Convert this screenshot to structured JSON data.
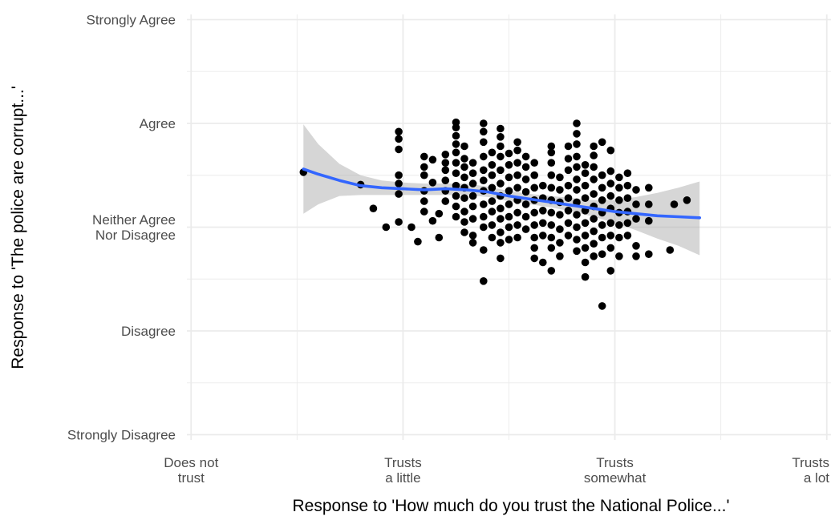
{
  "chart_data": {
    "type": "scatter",
    "title": "",
    "xlabel": "Response to 'How much do you trust the National Police...'",
    "ylabel": "Response to 'The police are corrupt...'",
    "xlim": [
      0.98,
      4.02
    ],
    "ylim": [
      0.95,
      5.05
    ],
    "x_ticks": [
      {
        "value": 1,
        "lines": [
          "Does not",
          "trust"
        ]
      },
      {
        "value": 2,
        "lines": [
          "Trusts",
          "a little"
        ]
      },
      {
        "value": 3,
        "lines": [
          "Trusts",
          "somewhat"
        ]
      },
      {
        "value": 4,
        "lines": [
          "Trusts",
          "a lot"
        ]
      }
    ],
    "y_ticks": [
      {
        "value": 1,
        "lines": [
          "Strongly Disagree"
        ]
      },
      {
        "value": 2,
        "lines": [
          "Disagree"
        ]
      },
      {
        "value": 3,
        "lines": [
          "Neither Agree",
          "Nor Disagree"
        ]
      },
      {
        "value": 4,
        "lines": [
          "Agree"
        ]
      },
      {
        "value": 5,
        "lines": [
          "Strongly Agree"
        ]
      }
    ],
    "grid": true,
    "legend": "none",
    "colors": {
      "points": "#000000",
      "smooth": "#3366FF",
      "ribbon": "#999999",
      "grid": "#ebebeb",
      "ticks": "#4d4d4d"
    },
    "points": [
      [
        1.53,
        3.53
      ],
      [
        1.8,
        3.41
      ],
      [
        1.86,
        3.18
      ],
      [
        1.92,
        3.0
      ],
      [
        1.98,
        3.5
      ],
      [
        1.98,
        3.32
      ],
      [
        1.98,
        3.05
      ],
      [
        1.98,
        3.42
      ],
      [
        1.98,
        3.75
      ],
      [
        1.98,
        3.85
      ],
      [
        1.98,
        3.92
      ],
      [
        2.04,
        3.0
      ],
      [
        2.07,
        2.86
      ],
      [
        2.1,
        3.15
      ],
      [
        2.1,
        3.25
      ],
      [
        2.1,
        3.35
      ],
      [
        2.1,
        3.5
      ],
      [
        2.1,
        3.58
      ],
      [
        2.1,
        3.68
      ],
      [
        2.14,
        3.43
      ],
      [
        2.14,
        3.65
      ],
      [
        2.14,
        3.06
      ],
      [
        2.17,
        2.9
      ],
      [
        2.17,
        3.13
      ],
      [
        2.2,
        3.25
      ],
      [
        2.2,
        3.35
      ],
      [
        2.2,
        3.45
      ],
      [
        2.2,
        3.55
      ],
      [
        2.2,
        3.62
      ],
      [
        2.2,
        3.7
      ],
      [
        2.25,
        3.1
      ],
      [
        2.25,
        3.2
      ],
      [
        2.25,
        3.3
      ],
      [
        2.25,
        3.4
      ],
      [
        2.25,
        3.52
      ],
      [
        2.25,
        3.62
      ],
      [
        2.25,
        3.72
      ],
      [
        2.25,
        3.8
      ],
      [
        2.25,
        3.88
      ],
      [
        2.25,
        3.96
      ],
      [
        2.25,
        4.01
      ],
      [
        2.29,
        2.95
      ],
      [
        2.29,
        3.05
      ],
      [
        2.29,
        3.15
      ],
      [
        2.29,
        3.28
      ],
      [
        2.29,
        3.38
      ],
      [
        2.29,
        3.48
      ],
      [
        2.29,
        3.58
      ],
      [
        2.29,
        3.66
      ],
      [
        2.29,
        3.78
      ],
      [
        2.33,
        2.92
      ],
      [
        2.33,
        2.85
      ],
      [
        2.33,
        3.08
      ],
      [
        2.33,
        3.2
      ],
      [
        2.33,
        3.3
      ],
      [
        2.33,
        3.42
      ],
      [
        2.33,
        3.52
      ],
      [
        2.33,
        3.62
      ],
      [
        2.38,
        2.48
      ],
      [
        2.38,
        2.78
      ],
      [
        2.38,
        3.0
      ],
      [
        2.38,
        3.1
      ],
      [
        2.38,
        3.22
      ],
      [
        2.38,
        3.35
      ],
      [
        2.38,
        3.45
      ],
      [
        2.38,
        3.55
      ],
      [
        2.38,
        3.68
      ],
      [
        2.38,
        3.82
      ],
      [
        2.38,
        3.92
      ],
      [
        2.38,
        4.0
      ],
      [
        2.42,
        2.9
      ],
      [
        2.42,
        3.02
      ],
      [
        2.42,
        3.15
      ],
      [
        2.42,
        3.25
      ],
      [
        2.42,
        3.38
      ],
      [
        2.42,
        3.5
      ],
      [
        2.42,
        3.6
      ],
      [
        2.42,
        3.72
      ],
      [
        2.46,
        2.7
      ],
      [
        2.46,
        2.85
      ],
      [
        2.46,
        2.95
      ],
      [
        2.46,
        3.08
      ],
      [
        2.46,
        3.18
      ],
      [
        2.46,
        3.3
      ],
      [
        2.46,
        3.42
      ],
      [
        2.46,
        3.55
      ],
      [
        2.46,
        3.68
      ],
      [
        2.46,
        3.78
      ],
      [
        2.46,
        3.87
      ],
      [
        2.46,
        3.95
      ],
      [
        2.5,
        2.88
      ],
      [
        2.5,
        3.0
      ],
      [
        2.5,
        3.1
      ],
      [
        2.5,
        3.22
      ],
      [
        2.5,
        3.35
      ],
      [
        2.5,
        3.48
      ],
      [
        2.5,
        3.6
      ],
      [
        2.5,
        3.71
      ],
      [
        2.54,
        2.9
      ],
      [
        2.54,
        3.02
      ],
      [
        2.54,
        3.14
      ],
      [
        2.54,
        3.26
      ],
      [
        2.54,
        3.38
      ],
      [
        2.54,
        3.5
      ],
      [
        2.54,
        3.62
      ],
      [
        2.54,
        3.74
      ],
      [
        2.54,
        3.82
      ],
      [
        2.58,
        2.98
      ],
      [
        2.58,
        3.1
      ],
      [
        2.58,
        3.22
      ],
      [
        2.58,
        3.34
      ],
      [
        2.58,
        3.46
      ],
      [
        2.58,
        3.58
      ],
      [
        2.58,
        3.68
      ],
      [
        2.62,
        2.8
      ],
      [
        2.62,
        2.9
      ],
      [
        2.62,
        3.02
      ],
      [
        2.62,
        3.14
      ],
      [
        2.62,
        3.26
      ],
      [
        2.62,
        3.38
      ],
      [
        2.62,
        3.5
      ],
      [
        2.62,
        3.62
      ],
      [
        2.62,
        2.7
      ],
      [
        2.66,
        2.66
      ],
      [
        2.66,
        2.92
      ],
      [
        2.66,
        3.04
      ],
      [
        2.66,
        3.16
      ],
      [
        2.66,
        3.28
      ],
      [
        2.66,
        3.4
      ],
      [
        2.7,
        2.58
      ],
      [
        2.7,
        2.8
      ],
      [
        2.7,
        2.9
      ],
      [
        2.7,
        3.02
      ],
      [
        2.7,
        3.14
      ],
      [
        2.7,
        3.26
      ],
      [
        2.7,
        3.38
      ],
      [
        2.7,
        3.5
      ],
      [
        2.7,
        3.62
      ],
      [
        2.7,
        3.72
      ],
      [
        2.7,
        3.78
      ],
      [
        2.74,
        2.72
      ],
      [
        2.74,
        2.85
      ],
      [
        2.74,
        2.98
      ],
      [
        2.74,
        3.12
      ],
      [
        2.74,
        3.24
      ],
      [
        2.74,
        3.36
      ],
      [
        2.74,
        3.48
      ],
      [
        2.78,
        2.92
      ],
      [
        2.78,
        3.04
      ],
      [
        2.78,
        3.16
      ],
      [
        2.78,
        3.28
      ],
      [
        2.78,
        3.4
      ],
      [
        2.78,
        3.55
      ],
      [
        2.78,
        3.66
      ],
      [
        2.78,
        3.78
      ],
      [
        2.82,
        2.77
      ],
      [
        2.82,
        2.88
      ],
      [
        2.82,
        3.0
      ],
      [
        2.82,
        3.12
      ],
      [
        2.82,
        3.24
      ],
      [
        2.82,
        3.36
      ],
      [
        2.82,
        3.46
      ],
      [
        2.82,
        3.58
      ],
      [
        2.82,
        3.68
      ],
      [
        2.82,
        3.8
      ],
      [
        2.82,
        3.9
      ],
      [
        2.82,
        4.0
      ],
      [
        2.86,
        2.52
      ],
      [
        2.86,
        2.66
      ],
      [
        2.86,
        2.8
      ],
      [
        2.86,
        2.92
      ],
      [
        2.86,
        3.04
      ],
      [
        2.86,
        3.16
      ],
      [
        2.86,
        3.28
      ],
      [
        2.86,
        3.4
      ],
      [
        2.86,
        3.52
      ],
      [
        2.86,
        3.6
      ],
      [
        2.9,
        2.72
      ],
      [
        2.9,
        2.84
      ],
      [
        2.9,
        2.96
      ],
      [
        2.9,
        3.08
      ],
      [
        2.9,
        3.2
      ],
      [
        2.9,
        3.32
      ],
      [
        2.9,
        3.46
      ],
      [
        2.9,
        3.58
      ],
      [
        2.9,
        3.69
      ],
      [
        2.9,
        3.78
      ],
      [
        2.94,
        2.24
      ],
      [
        2.94,
        2.74
      ],
      [
        2.94,
        2.9
      ],
      [
        2.94,
        3.02
      ],
      [
        2.94,
        3.14
      ],
      [
        2.94,
        3.26
      ],
      [
        2.94,
        3.38
      ],
      [
        2.94,
        3.5
      ],
      [
        2.94,
        3.82
      ],
      [
        2.98,
        2.58
      ],
      [
        2.98,
        2.8
      ],
      [
        2.98,
        2.92
      ],
      [
        2.98,
        3.04
      ],
      [
        2.98,
        3.18
      ],
      [
        2.98,
        3.3
      ],
      [
        2.98,
        3.42
      ],
      [
        2.98,
        3.54
      ],
      [
        2.98,
        3.74
      ],
      [
        3.02,
        2.72
      ],
      [
        3.02,
        2.9
      ],
      [
        3.02,
        3.02
      ],
      [
        3.02,
        3.14
      ],
      [
        3.02,
        3.26
      ],
      [
        3.02,
        3.38
      ],
      [
        3.02,
        3.48
      ],
      [
        3.06,
        2.92
      ],
      [
        3.06,
        3.04
      ],
      [
        3.06,
        3.15
      ],
      [
        3.06,
        3.28
      ],
      [
        3.06,
        3.4
      ],
      [
        3.06,
        3.52
      ],
      [
        3.1,
        2.72
      ],
      [
        3.1,
        2.82
      ],
      [
        3.1,
        3.08
      ],
      [
        3.1,
        3.22
      ],
      [
        3.1,
        3.36
      ],
      [
        3.16,
        2.74
      ],
      [
        3.16,
        3.06
      ],
      [
        3.16,
        3.22
      ],
      [
        3.16,
        3.38
      ],
      [
        3.26,
        2.78
      ],
      [
        3.28,
        3.22
      ],
      [
        3.34,
        3.26
      ]
    ],
    "smooth": [
      {
        "x": 1.53,
        "y": 3.56,
        "lo": 3.13,
        "hi": 3.99
      },
      {
        "x": 1.6,
        "y": 3.51,
        "lo": 3.22,
        "hi": 3.8
      },
      {
        "x": 1.7,
        "y": 3.45,
        "lo": 3.3,
        "hi": 3.61
      },
      {
        "x": 1.8,
        "y": 3.4,
        "lo": 3.31,
        "hi": 3.5
      },
      {
        "x": 1.9,
        "y": 3.38,
        "lo": 3.31,
        "hi": 3.45
      },
      {
        "x": 2.0,
        "y": 3.37,
        "lo": 3.31,
        "hi": 3.43
      },
      {
        "x": 2.1,
        "y": 3.36,
        "lo": 3.31,
        "hi": 3.42
      },
      {
        "x": 2.2,
        "y": 3.37,
        "lo": 3.31,
        "hi": 3.42
      },
      {
        "x": 2.3,
        "y": 3.36,
        "lo": 3.31,
        "hi": 3.42
      },
      {
        "x": 2.4,
        "y": 3.34,
        "lo": 3.29,
        "hi": 3.39
      },
      {
        "x": 2.5,
        "y": 3.3,
        "lo": 3.25,
        "hi": 3.35
      },
      {
        "x": 2.6,
        "y": 3.27,
        "lo": 3.22,
        "hi": 3.32
      },
      {
        "x": 2.7,
        "y": 3.24,
        "lo": 3.19,
        "hi": 3.3
      },
      {
        "x": 2.8,
        "y": 3.21,
        "lo": 3.15,
        "hi": 3.28
      },
      {
        "x": 2.9,
        "y": 3.18,
        "lo": 3.1,
        "hi": 3.26
      },
      {
        "x": 3.0,
        "y": 3.15,
        "lo": 3.04,
        "hi": 3.26
      },
      {
        "x": 3.1,
        "y": 3.13,
        "lo": 2.97,
        "hi": 3.29
      },
      {
        "x": 3.2,
        "y": 3.11,
        "lo": 2.89,
        "hi": 3.33
      },
      {
        "x": 3.3,
        "y": 3.1,
        "lo": 2.82,
        "hi": 3.38
      },
      {
        "x": 3.4,
        "y": 3.09,
        "lo": 2.73,
        "hi": 3.44
      }
    ]
  }
}
